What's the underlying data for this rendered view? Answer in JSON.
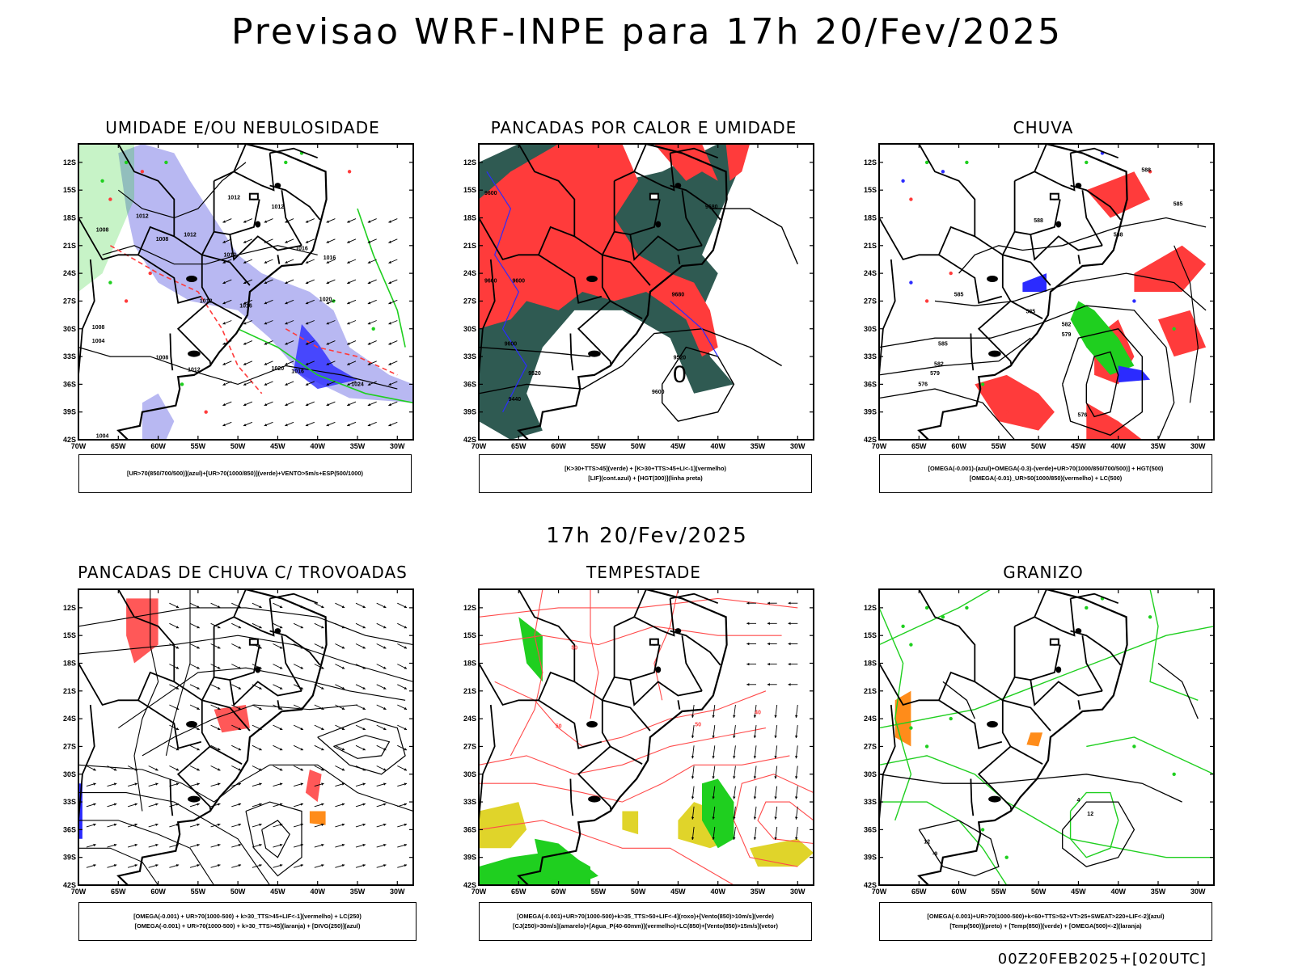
{
  "header": {
    "title": "Previsao WRF-INPE  para 17h 20/Fev/2025",
    "mid_title": "17h 20/Fev/2025",
    "run_stamp": "00Z20FEB2025+[020UTC]"
  },
  "axes": {
    "lon_labels": [
      "70W",
      "65W",
      "60W",
      "55W",
      "50W",
      "45W",
      "40W",
      "35W",
      "30W"
    ],
    "lat_labels": [
      "12S",
      "15S",
      "18S",
      "21S",
      "24S",
      "27S",
      "30S",
      "33S",
      "36S",
      "39S",
      "42S"
    ],
    "lon_values": [
      -70,
      -65,
      -60,
      -55,
      -50,
      -45,
      -40,
      -35,
      -30
    ],
    "lat_values": [
      -12,
      -15,
      -18,
      -21,
      -24,
      -27,
      -30,
      -33,
      -36,
      -39,
      -42
    ],
    "xlim": [
      -70,
      -28
    ],
    "ylim": [
      -42,
      -10
    ]
  },
  "colors": {
    "blue": "#2b2bff",
    "red": "#ff3b3b",
    "green": "#1fcf1f",
    "lavender": "#b8b8f2",
    "darkteal": "#2f5a52",
    "yellow": "#e0d42a",
    "orange": "#ff8c1a",
    "purple": "#8a2be2"
  },
  "chart_data": [
    {
      "type": "heatmap",
      "title": "UMIDADE E/OU NEBULOSIDADE",
      "legend": [
        "[UR>70(850/700/500)](azul)+[UR>70(1000/850)](verde)+VENTO>5m/s+ESP(500/1000)"
      ],
      "contour_labels": [
        {
          "text": "1012",
          "lon": -50.5,
          "lat": -16.0
        },
        {
          "text": "1012",
          "lon": -45.0,
          "lat": -17.0
        },
        {
          "text": "1012",
          "lon": -62.0,
          "lat": -18.0
        },
        {
          "text": "1008",
          "lon": -67.0,
          "lat": -19.5
        },
        {
          "text": "1008",
          "lon": -59.5,
          "lat": -20.5
        },
        {
          "text": "1012",
          "lon": -56.0,
          "lat": -20.0
        },
        {
          "text": "1012",
          "lon": -51.0,
          "lat": -22.2
        },
        {
          "text": "1016",
          "lon": -42.0,
          "lat": -21.5
        },
        {
          "text": "1016",
          "lon": -38.5,
          "lat": -22.5
        },
        {
          "text": "1012",
          "lon": -54.0,
          "lat": -27.2
        },
        {
          "text": "1016",
          "lon": -49.0,
          "lat": -27.7
        },
        {
          "text": "1020",
          "lon": -39.0,
          "lat": -27.0
        },
        {
          "text": "1008",
          "lon": -67.5,
          "lat": -30.0
        },
        {
          "text": "1004",
          "lon": -67.5,
          "lat": -31.5
        },
        {
          "text": "1008",
          "lon": -59.5,
          "lat": -33.3
        },
        {
          "text": "1012",
          "lon": -55.5,
          "lat": -34.6
        },
        {
          "text": "1020",
          "lon": -45.0,
          "lat": -34.5
        },
        {
          "text": "1016",
          "lon": -42.5,
          "lat": -34.8
        },
        {
          "text": "1024",
          "lon": -35.0,
          "lat": -36.2
        },
        {
          "text": "1004",
          "lon": -67.0,
          "lat": -41.8
        }
      ]
    },
    {
      "type": "heatmap",
      "title": "PANCADAS POR CALOR E UMIDADE",
      "legend": [
        "[K>30+TTS>45](verde) + [K>30+TTS>45+LI<-1](vermelho)",
        "[LIF](cont.azul) + [HGT(300)](linha preta)"
      ],
      "contour_labels": [
        {
          "text": "9600",
          "lon": -68.5,
          "lat": -15.5
        },
        {
          "text": "9680",
          "lon": -40.8,
          "lat": -17.0
        },
        {
          "text": "9600",
          "lon": -68.5,
          "lat": -25.0
        },
        {
          "text": "9600",
          "lon": -65.0,
          "lat": -25.0
        },
        {
          "text": "9680",
          "lon": -45.0,
          "lat": -26.5
        },
        {
          "text": "9600",
          "lon": -66.0,
          "lat": -31.8
        },
        {
          "text": "9520",
          "lon": -44.8,
          "lat": -33.3
        },
        {
          "text": "9520",
          "lon": -63.0,
          "lat": -35.0
        },
        {
          "text": "9600",
          "lon": -47.5,
          "lat": -37.0
        },
        {
          "text": "9440",
          "lon": -65.5,
          "lat": -37.8
        },
        {
          "text": "0",
          "lon": -44.8,
          "lat": -35.8
        }
      ]
    },
    {
      "type": "heatmap",
      "title": "CHUVA",
      "legend": [
        "[OMEGA(-0.001)-(azul)+OMEGA(-0.3)-(verde)+UR>70(1000/850/700/500)] + HGT(500)",
        "[OMEGA(-0.01)_UR>50(1000/850)(vermelho) + LC(500)"
      ],
      "contour_labels": [
        {
          "text": "588",
          "lon": -36.5,
          "lat": -13.0
        },
        {
          "text": "585",
          "lon": -32.5,
          "lat": -16.7
        },
        {
          "text": "588",
          "lon": -50.0,
          "lat": -18.5
        },
        {
          "text": "588",
          "lon": -40.0,
          "lat": -20.0
        },
        {
          "text": "585",
          "lon": -60.0,
          "lat": -26.5
        },
        {
          "text": "585",
          "lon": -51.0,
          "lat": -28.3
        },
        {
          "text": "582",
          "lon": -46.5,
          "lat": -29.7
        },
        {
          "text": "579",
          "lon": -46.5,
          "lat": -30.8
        },
        {
          "text": "585",
          "lon": -62.0,
          "lat": -31.8
        },
        {
          "text": "582",
          "lon": -62.5,
          "lat": -34.0
        },
        {
          "text": "579",
          "lon": -63.0,
          "lat": -35.0
        },
        {
          "text": "576",
          "lon": -64.5,
          "lat": -36.2
        },
        {
          "text": "576",
          "lon": -44.5,
          "lat": -39.5
        }
      ]
    },
    {
      "type": "heatmap",
      "title": "PANCADAS DE CHUVA C/ TROVOADAS",
      "legend": [
        "[OMEGA(-0.001) + UR>70(1000-500) + k>30_TTS>45+LIF<-1](vermelho) + LC(250)",
        "[OMEGA(-0.001) + UR>70(1000-500) + k>30_TTS>45](laranja) + [DIVG(250)](azul)"
      ],
      "contour_labels": []
    },
    {
      "type": "heatmap",
      "title": "TEMPESTADE",
      "legend": [
        "[OMEGA(-0.001)+UR>70(1000-500)+k>35_TTS>50+LIF<-4](roxo)+[Vento(850)>10m/s](verde)",
        "[CJ(250)>30m/s](amarelo)+[Agua_P(40-60mm)](vermelho)+LC(850)+[Vento(850)>15m/s](vetor)"
      ],
      "contour_labels": [
        {
          "text": "50",
          "lon": -58.0,
          "lat": -16.5
        },
        {
          "text": "50",
          "lon": -60.0,
          "lat": -25.0
        },
        {
          "text": "50",
          "lon": -42.5,
          "lat": -24.8
        },
        {
          "text": "40",
          "lon": -35.0,
          "lat": -23.5
        }
      ]
    },
    {
      "type": "heatmap",
      "title": "GRANIZO",
      "legend": [
        "[OMEGA(-0.001)+UR>70(1000-500)+k<60+TTS>52+VT>25+SWEAT>220+LIF<-2](azul)",
        "[Temp(500)](preto) + [Temp(850)](verde) + [OMEGA(500)<-2](laranja)"
      ],
      "contour_labels": [
        {
          "text": "12",
          "lon": -43.5,
          "lat": -34.5
        },
        {
          "text": "12",
          "lon": -64.0,
          "lat": -37.5
        },
        {
          "text": "-9",
          "lon": -63.0,
          "lat": -38.8
        },
        {
          "text": "4",
          "lon": -45.0,
          "lat": -33.0
        }
      ]
    }
  ]
}
